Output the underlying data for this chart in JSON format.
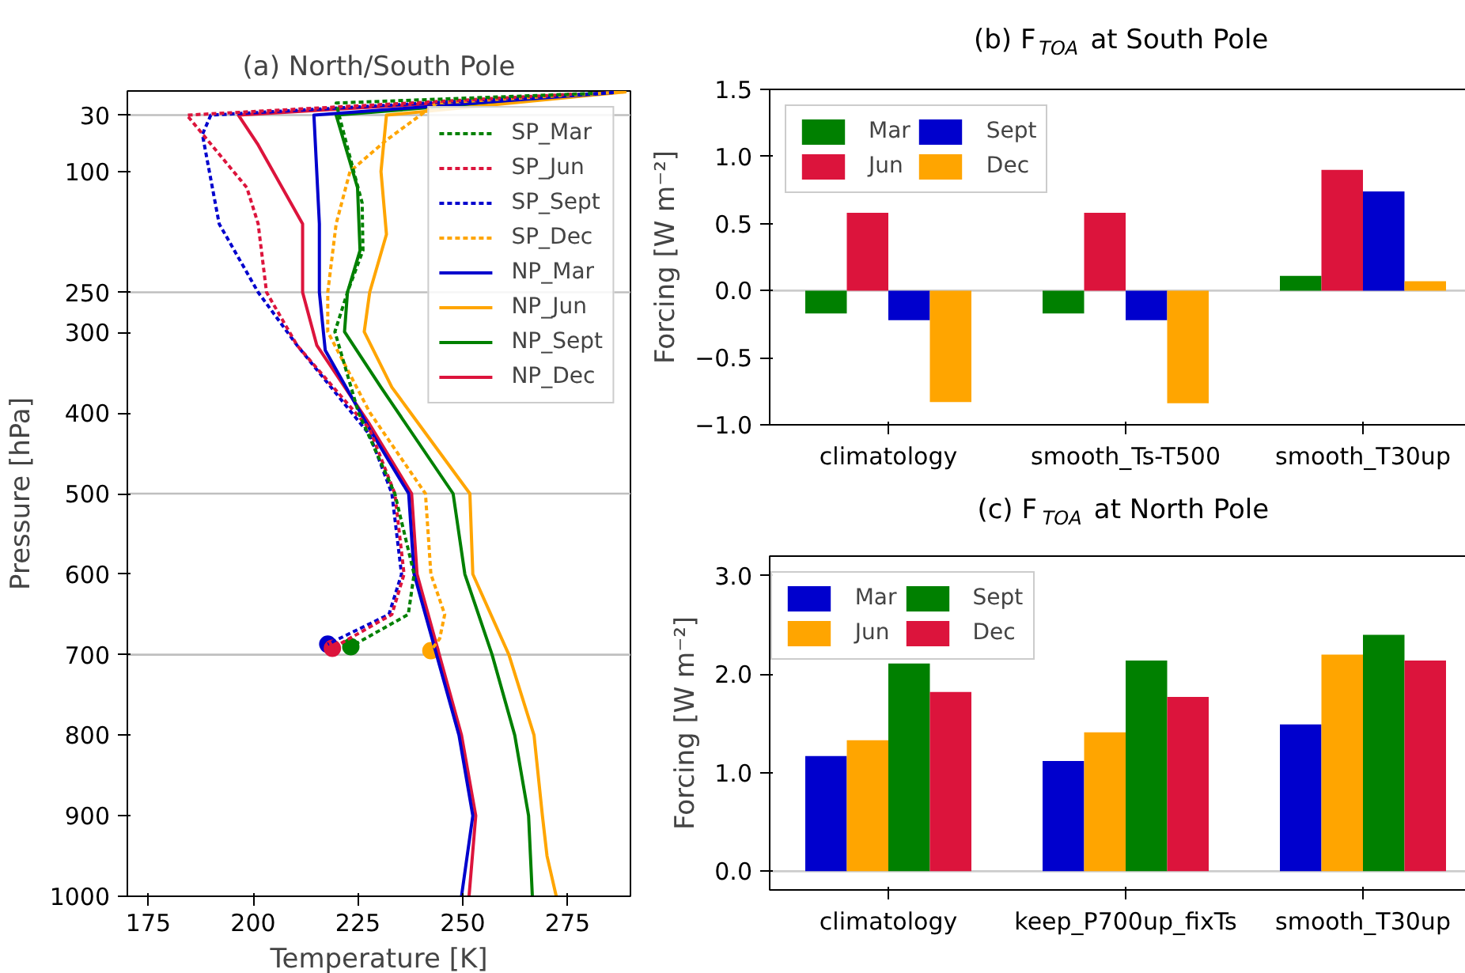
{
  "chart_data": [
    {
      "type": "line",
      "title": "(a) North/South Pole",
      "xlabel": "Temperature [K]",
      "ylabel": "Pressure [hPa]",
      "xlim": [
        170,
        290
      ],
      "ylim": [
        1000,
        0
      ],
      "xticks": [
        175,
        200,
        225,
        250,
        275
      ],
      "yticks": [
        30,
        100,
        250,
        300,
        400,
        500,
        600,
        700,
        800,
        900,
        1000
      ],
      "grid": false,
      "legend": "top right",
      "ref_lines": [
        {
          "axis": "y",
          "value": 30,
          "color": "#bfbfbf"
        },
        {
          "axis": "y",
          "value": 250,
          "color": "#bfbfbf"
        },
        {
          "axis": "y",
          "value": 500,
          "color": "#bfbfbf"
        },
        {
          "axis": "y",
          "value": 700,
          "color": "#bfbfbf"
        }
      ],
      "series": [
        {
          "name": "SP_Mar",
          "color": "#008000",
          "line_style": "dashed",
          "x": [
            281,
            219.8,
            220.5,
            224,
            226,
            226.2,
            222.5,
            219.5,
            225.1,
            233.8,
            238.4,
            237,
            223.3
          ],
          "values": [
            3,
            15,
            30,
            100,
            139,
            198,
            250,
            299,
            399,
            500,
            600,
            650,
            690
          ]
        },
        {
          "name": "SP_Jun",
          "color": "#dc143c",
          "line_style": "dashed",
          "x": [
            276,
            184.2,
            198.5,
            201.2,
            203.2,
            210.5,
            227.8,
            233.8,
            236,
            233.1,
            218.9
          ],
          "values": [
            4,
            30,
            120,
            165,
            250,
            316,
            420,
            500,
            600,
            650,
            692
          ]
        },
        {
          "name": "SP_Sept",
          "color": "#0000cd",
          "line_style": "dashed",
          "x": [
            286,
            189.9,
            187.9,
            191.9,
            201.2,
            210.5,
            227.8,
            233.1,
            235.4,
            232.4,
            217.8
          ],
          "values": [
            2,
            30,
            54,
            165,
            250,
            316,
            427,
            500,
            600,
            650,
            687
          ]
        },
        {
          "name": "SP_Dec",
          "color": "#ffa500",
          "line_style": "dashed",
          "x": [
            289,
            243.8,
            231.8,
            223.1,
            219.8,
            217.8,
            217.8,
            227.8,
            241.1,
            242.4,
            245.7,
            244.5,
            242.4
          ],
          "values": [
            1,
            15,
            61,
            100,
            165,
            250,
            299,
            399,
            500,
            600,
            650,
            680,
            695
          ]
        },
        {
          "name": "NP_Mar",
          "color": "#0000cd",
          "line_style": "solid",
          "x": [
            286,
            214.5,
            215.8,
            215.8,
            217.2,
            227.8,
            237.1,
            238.4,
            249.1,
            252.4,
            249.7
          ],
          "values": [
            2,
            30,
            165,
            250,
            322,
            420,
            500,
            600,
            800,
            900,
            1000
          ]
        },
        {
          "name": "NP_Jun",
          "color": "#ffa500",
          "line_style": "solid",
          "x": [
            289,
            231.8,
            230.5,
            231.8,
            227.8,
            226.5,
            233.1,
            251.7,
            252.4,
            261,
            267,
            269,
            270.1,
            272.3
          ],
          "values": [
            1,
            30,
            100,
            178,
            250,
            299,
            368,
            500,
            600,
            700,
            800,
            900,
            950,
            1000
          ]
        },
        {
          "name": "NP_Sept",
          "color": "#008000",
          "line_style": "solid",
          "x": [
            286,
            219.8,
            224.9,
            225.5,
            222.5,
            221.8,
            230.5,
            247.7,
            250.5,
            257,
            262.4,
            265.7,
            266.6
          ],
          "values": [
            2,
            30,
            120,
            198,
            250,
            299,
            368,
            500,
            600,
            700,
            800,
            900,
            1000
          ]
        },
        {
          "name": "NP_Dec",
          "color": "#dc143c",
          "line_style": "solid",
          "x": [
            286,
            196.5,
            201.2,
            211.8,
            211.8,
            215.2,
            227.8,
            237.8,
            239.1,
            249.7,
            253.1,
            251.5
          ],
          "values": [
            2,
            30,
            67,
            165,
            250,
            316,
            414,
            500,
            600,
            800,
            900,
            1000
          ]
        },
        {
          "type": "scatter",
          "marker": "circle",
          "color": "#008000",
          "x": [
            223.3
          ],
          "values": [
            690
          ]
        },
        {
          "type": "scatter",
          "marker": "circle",
          "color": "#dc143c",
          "x": [
            218.9
          ],
          "values": [
            692
          ]
        },
        {
          "type": "scatter",
          "marker": "circle",
          "color": "#0000cd",
          "x": [
            217.8
          ],
          "values": [
            687
          ]
        },
        {
          "type": "scatter",
          "marker": "circle",
          "color": "#ffa500",
          "x": [
            242.4
          ],
          "values": [
            695
          ]
        }
      ]
    },
    {
      "type": "bar",
      "title": "(b) F$_{TOA}$ at South Pole",
      "ylabel": "Forcing [W m⁻²]",
      "categories": [
        "climatology",
        "smooth_Ts-T500",
        "smooth_T30up"
      ],
      "ylim": [
        -1.0,
        1.5
      ],
      "yticks": [
        {
          "value": -1.0,
          "label": "−1.0"
        },
        {
          "value": -0.5,
          "label": "−0.5"
        },
        {
          "value": 0.0,
          "label": "0.0"
        },
        {
          "value": 0.5,
          "label": "0.5"
        },
        {
          "value": 1.0,
          "label": "1.0"
        },
        {
          "value": 1.5,
          "label": "1.5"
        }
      ],
      "grid": false,
      "legend": "top left",
      "ref_lines": [
        {
          "axis": "y",
          "value": 0,
          "color": "#cccccc"
        }
      ],
      "series": [
        {
          "name": "Mar",
          "color": "#008000",
          "values": [
            -0.17,
            -0.17,
            0.11
          ]
        },
        {
          "name": "Jun",
          "color": "#dc143c",
          "values": [
            0.58,
            0.58,
            0.9
          ]
        },
        {
          "name": "Sept",
          "color": "#0000cd",
          "values": [
            -0.22,
            -0.22,
            0.74
          ]
        },
        {
          "name": "Dec",
          "color": "#ffa500",
          "values": [
            -0.83,
            -0.84,
            0.07
          ]
        }
      ]
    },
    {
      "type": "bar",
      "title": "(c) F$_{TOA}$ at North Pole",
      "ylabel": "Forcing [W m⁻²]",
      "categories": [
        "climatology",
        "keep_P700up_fixTs",
        "smooth_T30up"
      ],
      "ylim": [
        -0.19,
        3.2
      ],
      "yticks": [
        {
          "value": 0.0,
          "label": "0.0"
        },
        {
          "value": 1.0,
          "label": "1.0"
        },
        {
          "value": 2.0,
          "label": "2.0"
        },
        {
          "value": 3.0,
          "label": "3.0"
        }
      ],
      "grid": false,
      "legend": "top left",
      "ref_lines": [
        {
          "axis": "y",
          "value": 0,
          "color": "#cccccc"
        }
      ],
      "series": [
        {
          "name": "Mar",
          "color": "#0000cd",
          "values": [
            1.17,
            1.12,
            1.49
          ]
        },
        {
          "name": "Jun",
          "color": "#ffa500",
          "values": [
            1.33,
            1.41,
            2.2
          ]
        },
        {
          "name": "Sept",
          "color": "#008000",
          "values": [
            2.11,
            2.14,
            2.4
          ]
        },
        {
          "name": "Dec",
          "color": "#dc143c",
          "values": [
            1.82,
            1.77,
            2.14
          ]
        }
      ]
    }
  ]
}
